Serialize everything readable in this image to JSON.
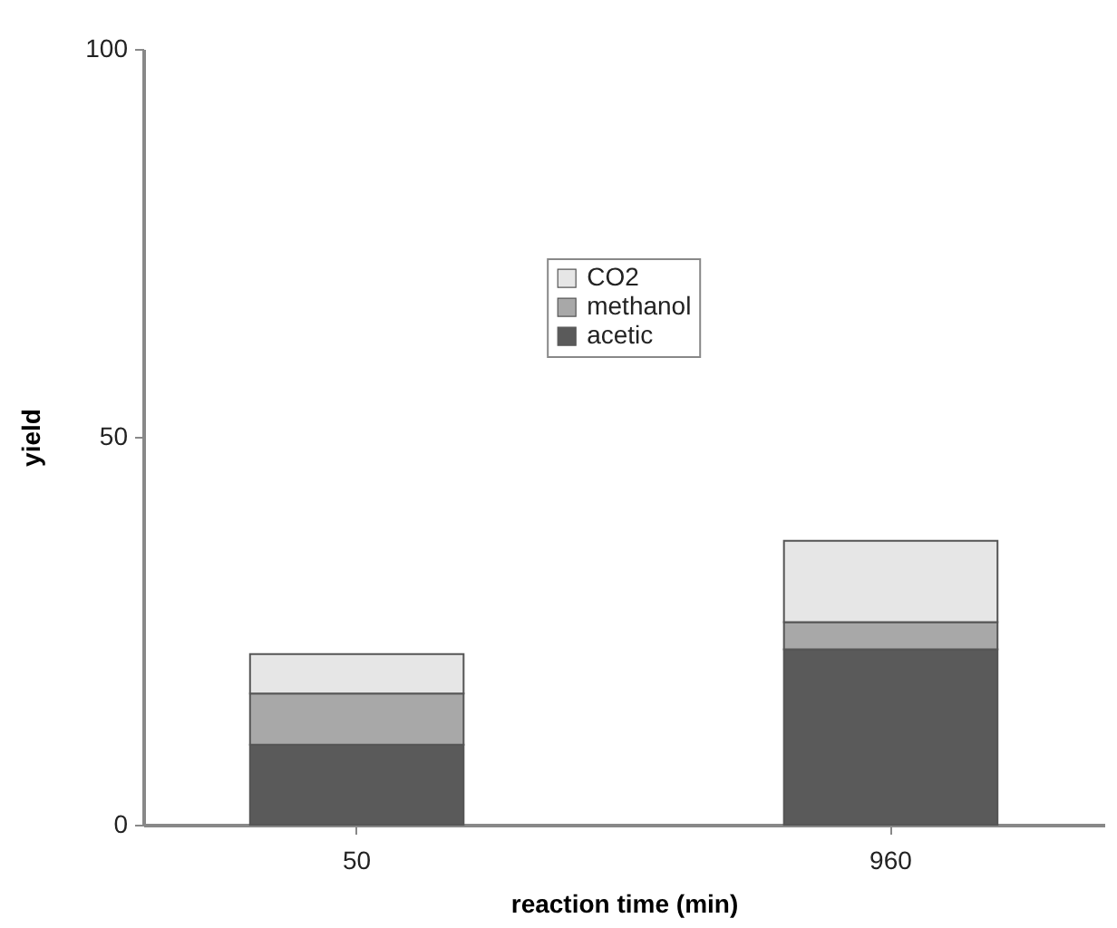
{
  "chart_data": {
    "type": "bar",
    "stacked": true,
    "xlabel": "reaction time (min)",
    "ylabel": "yield",
    "categories": [
      "50",
      "960"
    ],
    "ylim": [
      0,
      100
    ],
    "yticks": [
      0,
      50,
      100
    ],
    "legend": "top",
    "series": [
      {
        "name": "acetic",
        "color": "#5a5a5a",
        "values": [
          10.3,
          22.6
        ]
      },
      {
        "name": "methanol",
        "color": "#a8a8a8",
        "values": [
          6.6,
          3.5
        ]
      },
      {
        "name": "CO2",
        "color": "#e6e6e6",
        "values": [
          5.1,
          10.5
        ]
      }
    ]
  }
}
